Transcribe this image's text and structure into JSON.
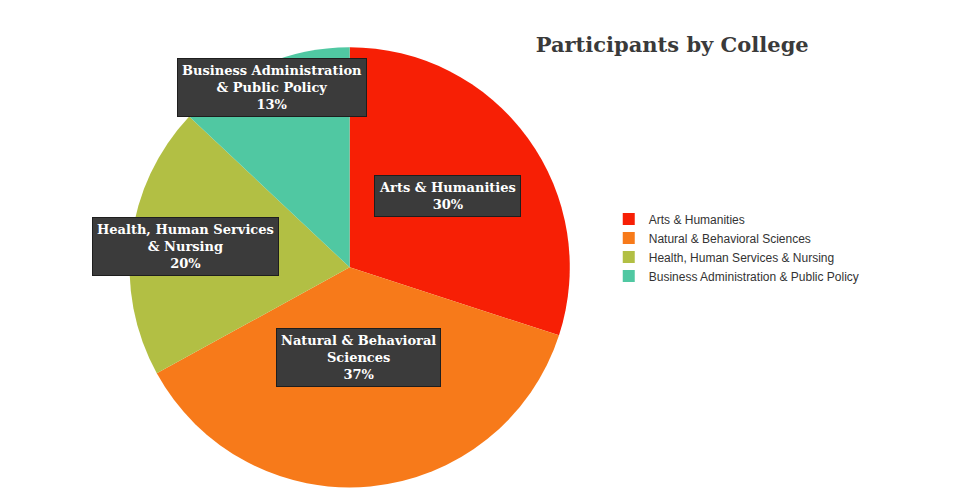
{
  "chart_data": {
    "type": "pie",
    "title": "Participants by College",
    "categories": [
      "Arts & Humanities",
      "Natural & Behavioral Sciences",
      "Health, Human Services & Nursing",
      "Business Administration & Public Policy"
    ],
    "values": [
      30,
      37,
      20,
      13
    ],
    "value_labels": [
      "30%",
      "37%",
      "20%",
      "13%"
    ],
    "colors": [
      "#f71f05",
      "#f77a1a",
      "#b2bf44",
      "#50c8a2"
    ],
    "data_labels": true,
    "legend": "right"
  }
}
